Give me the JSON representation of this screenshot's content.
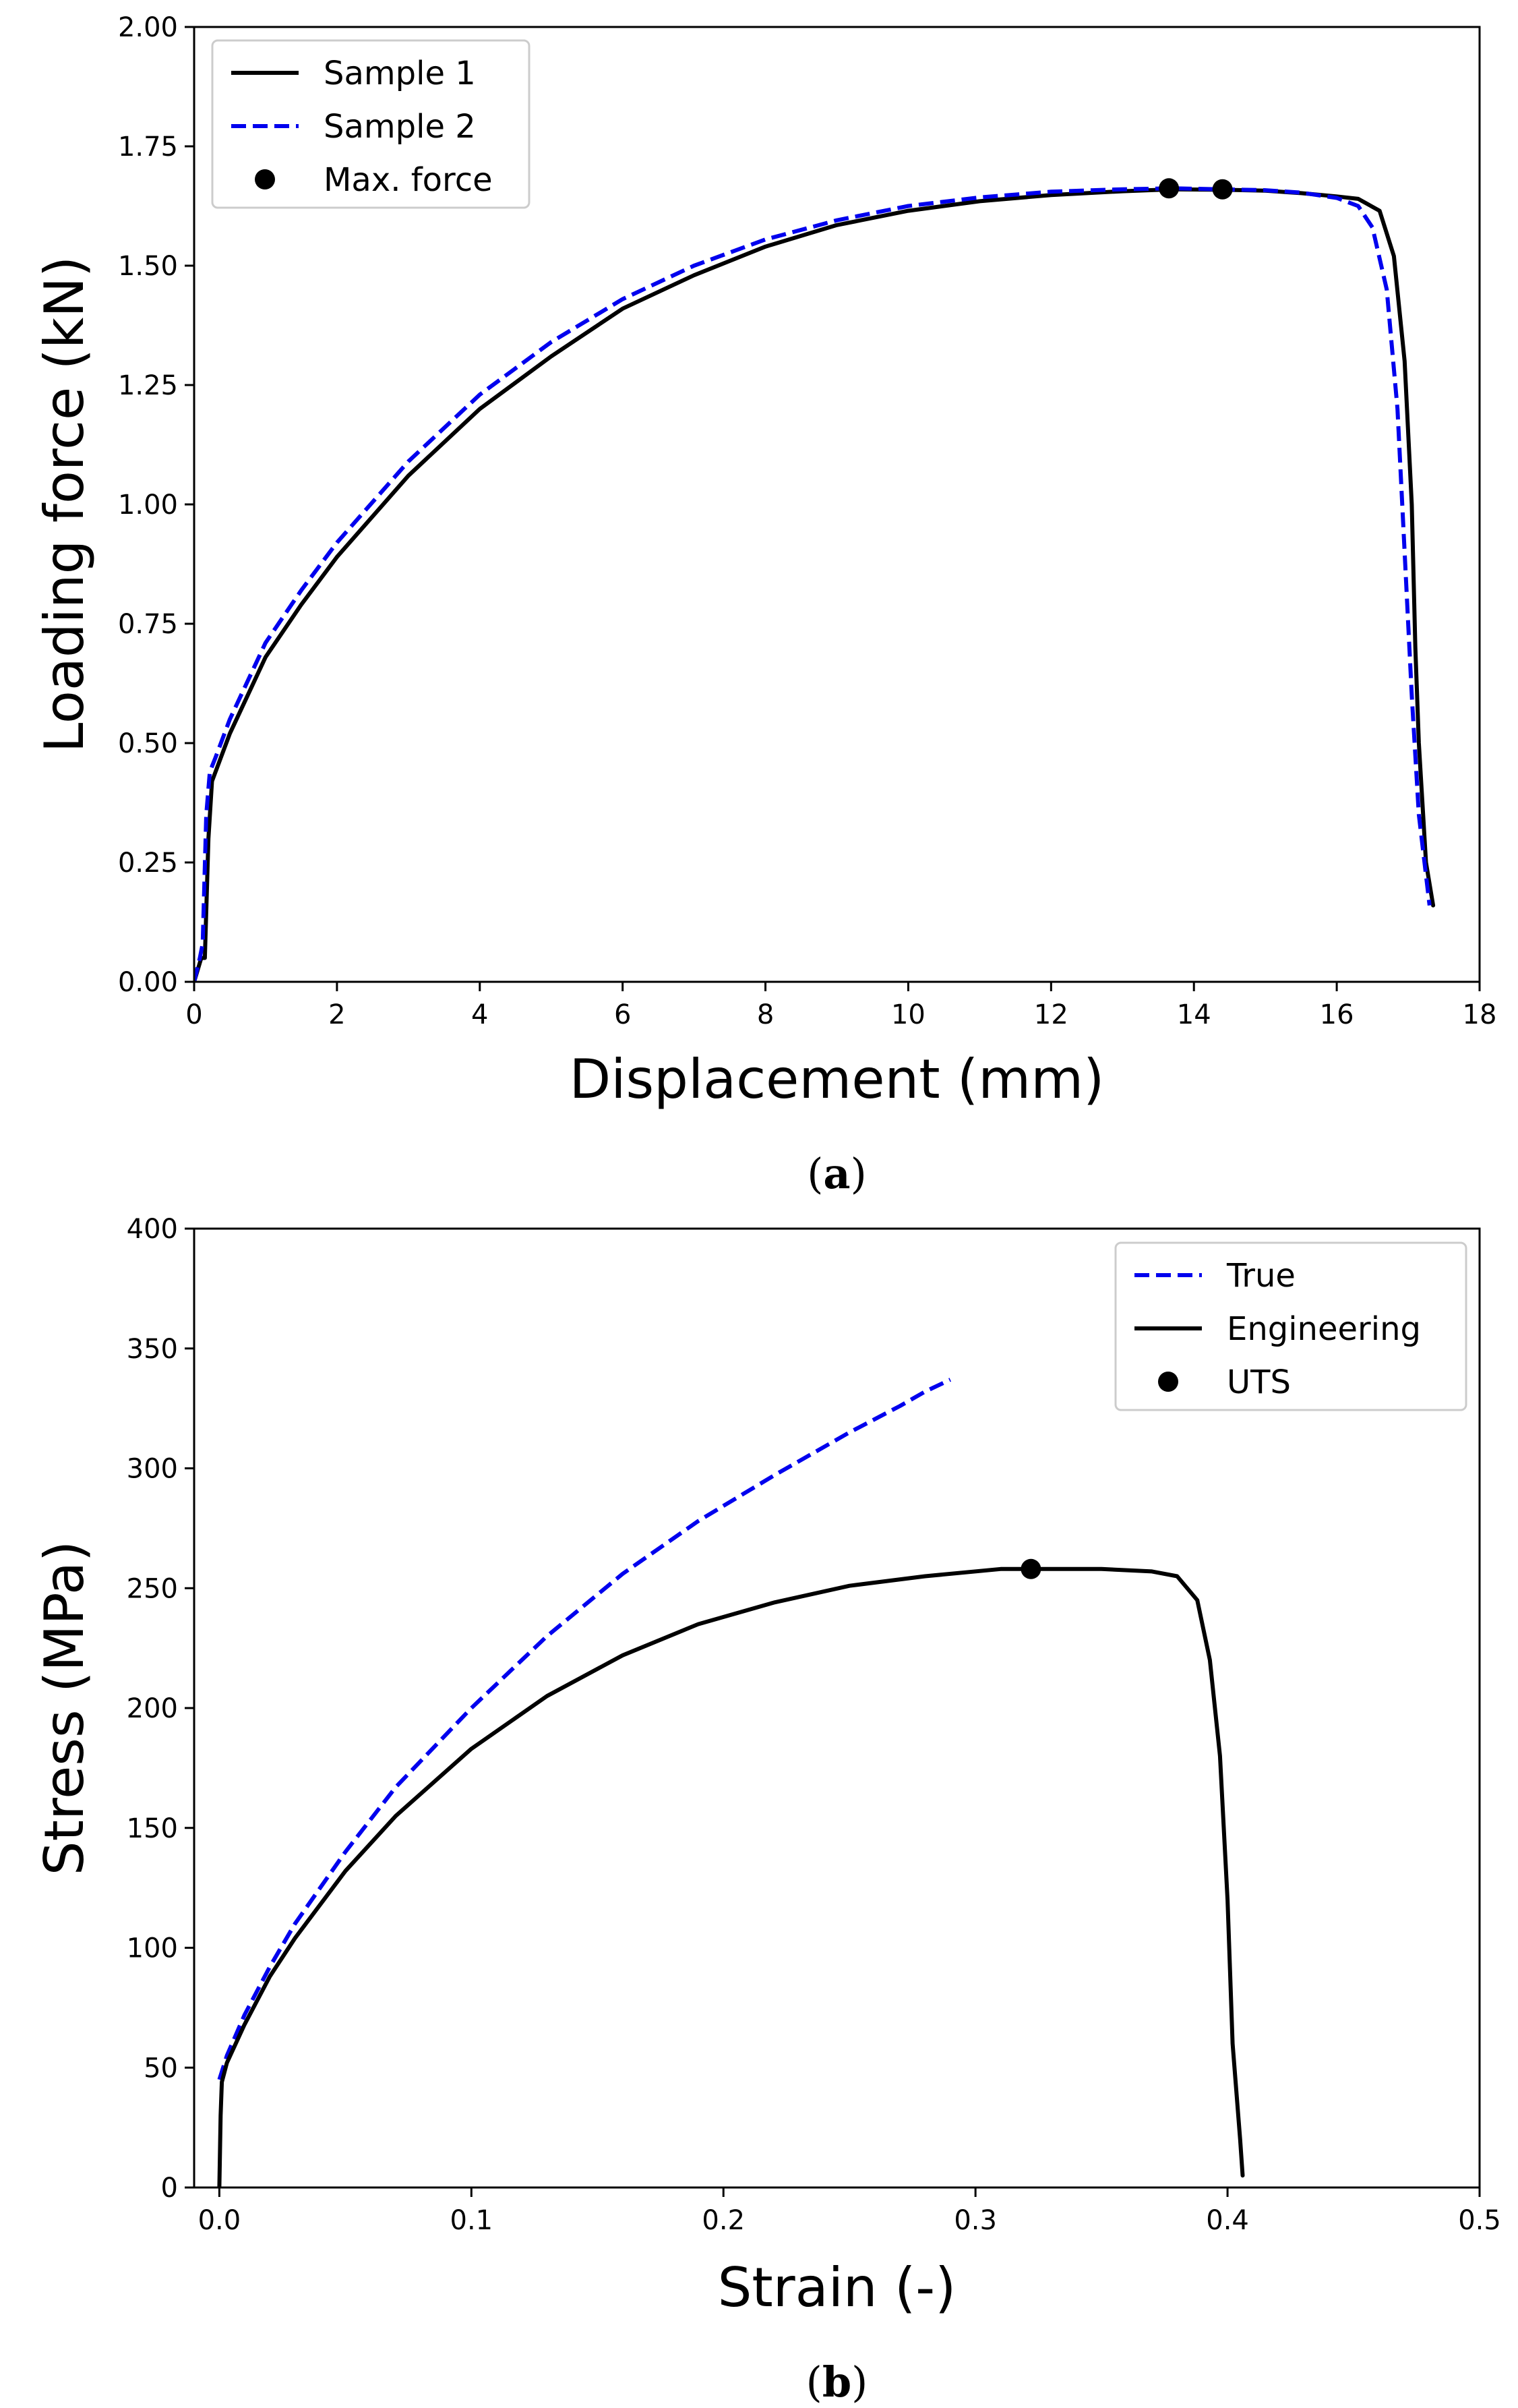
{
  "chart_data": [
    {
      "id": "a",
      "type": "line",
      "caption_letter": "a",
      "xlabel": "Displacement (mm)",
      "ylabel": "Loading force (kN)",
      "xlim": [
        0,
        18
      ],
      "ylim": [
        0,
        2.0
      ],
      "xticks": [
        0,
        2,
        4,
        6,
        8,
        10,
        12,
        14,
        16,
        18
      ],
      "yticks": [
        0.0,
        0.25,
        0.5,
        0.75,
        1.0,
        1.25,
        1.5,
        1.75,
        2.0
      ],
      "ytick_decimals": 2,
      "xtick_decimals": 0,
      "legend": {
        "position": "top-left"
      },
      "series": [
        {
          "name": "Sample 1",
          "style": "solid",
          "color": "#000000",
          "points": [
            [
              0,
              0
            ],
            [
              0.1,
              0.05
            ],
            [
              0.15,
              0.05
            ],
            [
              0.2,
              0.3
            ],
            [
              0.25,
              0.42
            ],
            [
              0.3,
              0.44
            ],
            [
              0.5,
              0.52
            ],
            [
              1,
              0.68
            ],
            [
              1.5,
              0.79
            ],
            [
              2,
              0.89
            ],
            [
              3,
              1.06
            ],
            [
              4,
              1.2
            ],
            [
              5,
              1.31
            ],
            [
              6,
              1.41
            ],
            [
              7,
              1.48
            ],
            [
              8,
              1.54
            ],
            [
              9,
              1.585
            ],
            [
              10,
              1.615
            ],
            [
              11,
              1.635
            ],
            [
              12,
              1.648
            ],
            [
              13,
              1.656
            ],
            [
              13.7,
              1.66
            ],
            [
              14.4,
              1.659
            ],
            [
              15,
              1.657
            ],
            [
              15.5,
              1.652
            ],
            [
              16,
              1.645
            ],
            [
              16.3,
              1.64
            ],
            [
              16.6,
              1.615
            ],
            [
              16.8,
              1.52
            ],
            [
              16.95,
              1.3
            ],
            [
              17.05,
              1.0
            ],
            [
              17.1,
              0.7
            ],
            [
              17.15,
              0.5
            ],
            [
              17.25,
              0.25
            ],
            [
              17.35,
              0.16
            ]
          ]
        },
        {
          "name": "Sample 2",
          "style": "dashed",
          "color": "#0000ee",
          "points": [
            [
              0,
              0
            ],
            [
              0.08,
              0.05
            ],
            [
              0.12,
              0.08
            ],
            [
              0.17,
              0.35
            ],
            [
              0.22,
              0.44
            ],
            [
              0.3,
              0.47
            ],
            [
              0.5,
              0.55
            ],
            [
              1,
              0.71
            ],
            [
              1.5,
              0.82
            ],
            [
              2,
              0.92
            ],
            [
              3,
              1.09
            ],
            [
              4,
              1.23
            ],
            [
              5,
              1.34
            ],
            [
              6,
              1.43
            ],
            [
              7,
              1.5
            ],
            [
              8,
              1.555
            ],
            [
              9,
              1.595
            ],
            [
              10,
              1.625
            ],
            [
              11,
              1.643
            ],
            [
              12,
              1.655
            ],
            [
              13,
              1.66
            ],
            [
              13.7,
              1.662
            ],
            [
              14.4,
              1.66
            ],
            [
              15,
              1.658
            ],
            [
              15.5,
              1.653
            ],
            [
              16,
              1.642
            ],
            [
              16.3,
              1.625
            ],
            [
              16.5,
              1.58
            ],
            [
              16.7,
              1.45
            ],
            [
              16.85,
              1.2
            ],
            [
              16.95,
              0.9
            ],
            [
              17.05,
              0.6
            ],
            [
              17.15,
              0.35
            ],
            [
              17.3,
              0.16
            ]
          ]
        },
        {
          "name": "Max. force",
          "type": "scatter",
          "color": "#000000",
          "points": [
            [
              13.65,
              1.662
            ],
            [
              14.4,
              1.66
            ]
          ]
        }
      ]
    },
    {
      "id": "b",
      "type": "line",
      "caption_letter": "b",
      "xlabel": "Strain (-)",
      "ylabel": "Stress (MPa)",
      "xlim": [
        -0.01,
        0.5
      ],
      "ylim": [
        0,
        400
      ],
      "xticks": [
        0.0,
        0.1,
        0.2,
        0.3,
        0.4,
        0.5
      ],
      "yticks": [
        0,
        50,
        100,
        150,
        200,
        250,
        300,
        350,
        400
      ],
      "xtick_labels": [
        "0.0",
        "0.1",
        "0.2",
        "0.3",
        "0.4",
        "0.5"
      ],
      "ytick_decimals": 0,
      "legend": {
        "position": "top-right"
      },
      "series": [
        {
          "name": "True",
          "style": "dashed",
          "color": "#0000ee",
          "points": [
            [
              0,
              45
            ],
            [
              0.003,
              55
            ],
            [
              0.01,
              72
            ],
            [
              0.02,
              92
            ],
            [
              0.03,
              110
            ],
            [
              0.05,
              140
            ],
            [
              0.07,
              167
            ],
            [
              0.1,
              200
            ],
            [
              0.13,
              230
            ],
            [
              0.16,
              256
            ],
            [
              0.19,
              278
            ],
            [
              0.22,
              297
            ],
            [
              0.25,
              315
            ],
            [
              0.27,
              326
            ],
            [
              0.28,
              332
            ],
            [
              0.29,
              337
            ]
          ]
        },
        {
          "name": "Engineering",
          "style": "solid",
          "color": "#000000",
          "points": [
            [
              0,
              0
            ],
            [
              0.0005,
              30
            ],
            [
              0.001,
              44
            ],
            [
              0.003,
              52
            ],
            [
              0.01,
              68
            ],
            [
              0.02,
              88
            ],
            [
              0.03,
              104
            ],
            [
              0.05,
              132
            ],
            [
              0.07,
              155
            ],
            [
              0.1,
              183
            ],
            [
              0.13,
              205
            ],
            [
              0.16,
              222
            ],
            [
              0.19,
              235
            ],
            [
              0.22,
              244
            ],
            [
              0.25,
              251
            ],
            [
              0.28,
              255
            ],
            [
              0.31,
              258
            ],
            [
              0.32,
              258
            ],
            [
              0.35,
              258
            ],
            [
              0.37,
              257
            ],
            [
              0.38,
              255
            ],
            [
              0.388,
              245
            ],
            [
              0.393,
              220
            ],
            [
              0.397,
              180
            ],
            [
              0.4,
              120
            ],
            [
              0.402,
              60
            ],
            [
              0.405,
              20
            ],
            [
              0.406,
              5
            ]
          ]
        },
        {
          "name": "UTS",
          "type": "scatter",
          "color": "#000000",
          "points": [
            [
              0.322,
              258
            ]
          ]
        }
      ]
    }
  ]
}
